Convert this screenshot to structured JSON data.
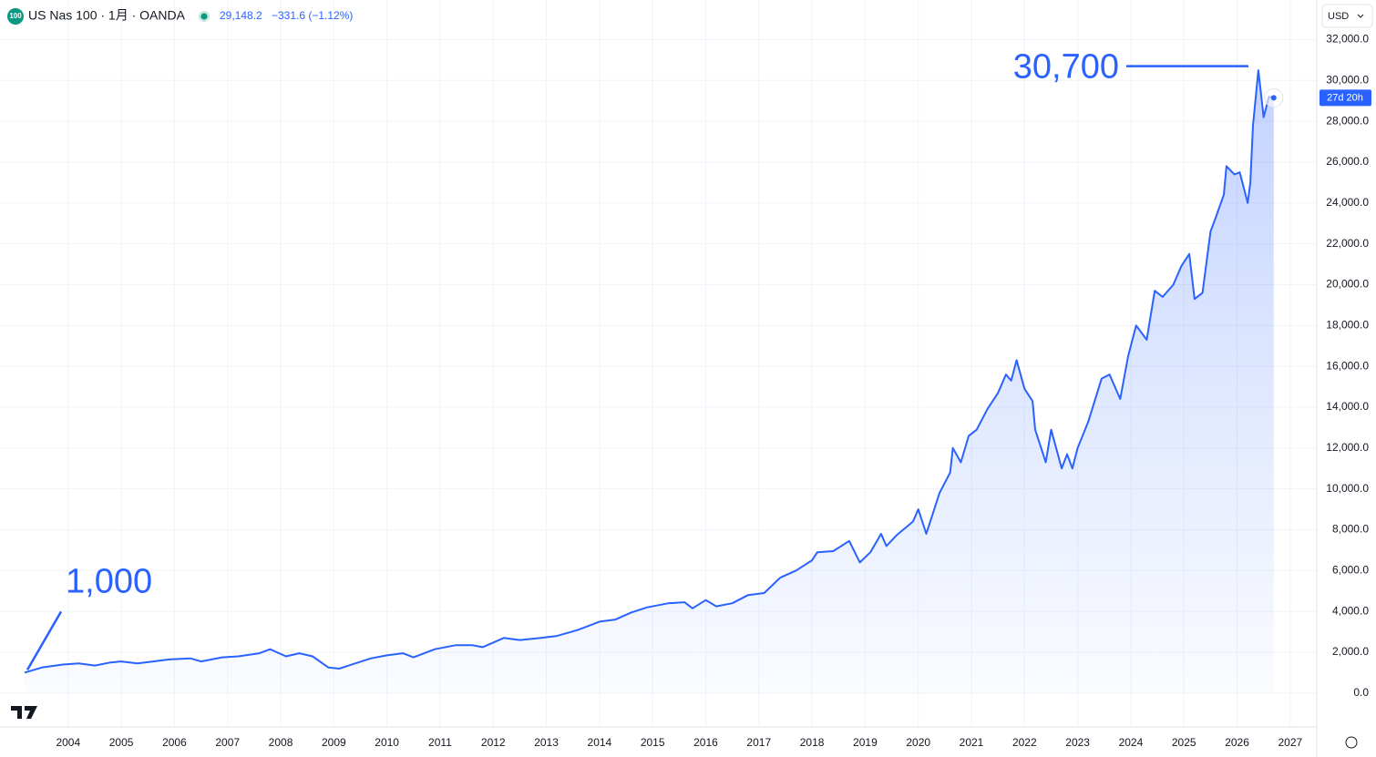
{
  "header": {
    "symbol_badge": "100",
    "title": "US Nas 100 · 1月 · OANDA",
    "price": "29,148.2",
    "change": "−331.6 (−1.12%)",
    "currency": "USD",
    "countdown": "27d 20h"
  },
  "chart_data": {
    "type": "area",
    "color": "#2962ff",
    "grid": true,
    "xlim": [
      2003.18,
      2027.5
    ],
    "xticks": [
      2004,
      2005,
      2006,
      2007,
      2008,
      2009,
      2010,
      2011,
      2012,
      2013,
      2014,
      2015,
      2016,
      2017,
      2018,
      2019,
      2020,
      2021,
      2022,
      2023,
      2024,
      2025,
      2026,
      2027
    ],
    "ylim": [
      -1300,
      32600
    ],
    "yticks": [
      {
        "value": 0,
        "label": "0.0"
      },
      {
        "value": 2000,
        "label": "2,000.0"
      },
      {
        "value": 4000,
        "label": "4,000.0"
      },
      {
        "value": 6000,
        "label": "6,000.0"
      },
      {
        "value": 8000,
        "label": "8,000.0"
      },
      {
        "value": 10000,
        "label": "10,000.0"
      },
      {
        "value": 12000,
        "label": "12,000.0"
      },
      {
        "value": 14000,
        "label": "14,000.0"
      },
      {
        "value": 16000,
        "label": "16,000.0"
      },
      {
        "value": 18000,
        "label": "18,000.0"
      },
      {
        "value": 20000,
        "label": "20,000.0"
      },
      {
        "value": 22000,
        "label": "22,000.0"
      },
      {
        "value": 24000,
        "label": "24,000.0"
      },
      {
        "value": 26000,
        "label": "26,000.0"
      },
      {
        "value": 28000,
        "label": "28,000.0"
      },
      {
        "value": 30000,
        "label": "30,000.0"
      },
      {
        "value": 32000,
        "label": "32,000.0"
      }
    ],
    "annotations": [
      {
        "text": "1,000",
        "value": 1000
      },
      {
        "text": "30,700",
        "value": 30700
      }
    ],
    "x": [
      2003.18,
      2003.5,
      2003.9,
      2004.2,
      2004.5,
      2004.8,
      2005.0,
      2005.3,
      2005.6,
      2005.9,
      2006.3,
      2006.5,
      2006.9,
      2007.2,
      2007.6,
      2007.8,
      2008.1,
      2008.35,
      2008.6,
      2008.9,
      2009.1,
      2009.4,
      2009.7,
      2010.0,
      2010.3,
      2010.5,
      2010.9,
      2011.3,
      2011.6,
      2011.8,
      2012.2,
      2012.5,
      2012.9,
      2013.2,
      2013.6,
      2014.0,
      2014.3,
      2014.6,
      2014.9,
      2015.3,
      2015.6,
      2015.75,
      2016.0,
      2016.2,
      2016.5,
      2016.8,
      2017.1,
      2017.4,
      2017.7,
      2018.0,
      2018.1,
      2018.4,
      2018.7,
      2018.9,
      2019.1,
      2019.3,
      2019.4,
      2019.6,
      2019.9,
      2020.0,
      2020.15,
      2020.4,
      2020.6,
      2020.65,
      2020.8,
      2020.95,
      2021.1,
      2021.3,
      2021.5,
      2021.65,
      2021.75,
      2021.85,
      2022.0,
      2022.15,
      2022.2,
      2022.4,
      2022.5,
      2022.7,
      2022.8,
      2022.9,
      2023.0,
      2023.2,
      2023.45,
      2023.6,
      2023.8,
      2023.95,
      2024.1,
      2024.3,
      2024.45,
      2024.6,
      2024.8,
      2024.95,
      2025.1,
      2025.2,
      2025.35,
      2025.5,
      2025.6,
      2025.75,
      2025.8,
      2025.95,
      2026.05,
      2026.2,
      2026.25,
      2026.3,
      2026.4,
      2026.5,
      2026.6,
      2026.69
    ],
    "values": [
      1000,
      1250,
      1400,
      1450,
      1350,
      1500,
      1550,
      1450,
      1550,
      1650,
      1700,
      1550,
      1750,
      1800,
      1950,
      2150,
      1800,
      1950,
      1800,
      1250,
      1200,
      1450,
      1700,
      1850,
      1950,
      1750,
      2150,
      2350,
      2350,
      2250,
      2700,
      2600,
      2700,
      2800,
      3100,
      3500,
      3600,
      3950,
      4200,
      4400,
      4450,
      4150,
      4550,
      4250,
      4400,
      4800,
      4900,
      5650,
      6000,
      6500,
      6900,
      6950,
      7450,
      6400,
      6900,
      7800,
      7200,
      7750,
      8400,
      9000,
      7800,
      9800,
      10800,
      12000,
      11300,
      12600,
      12900,
      13900,
      14700,
      15600,
      15300,
      16300,
      14900,
      14300,
      12900,
      11300,
      12900,
      11000,
      11700,
      11000,
      12000,
      13300,
      15400,
      15600,
      14400,
      16500,
      18000,
      17300,
      19700,
      19400,
      20000,
      20900,
      21500,
      19300,
      19600,
      22600,
      23300,
      24400,
      25800,
      25400,
      25500,
      24000,
      25000,
      27800,
      30500,
      28200,
      29200,
      29148.2
    ]
  }
}
